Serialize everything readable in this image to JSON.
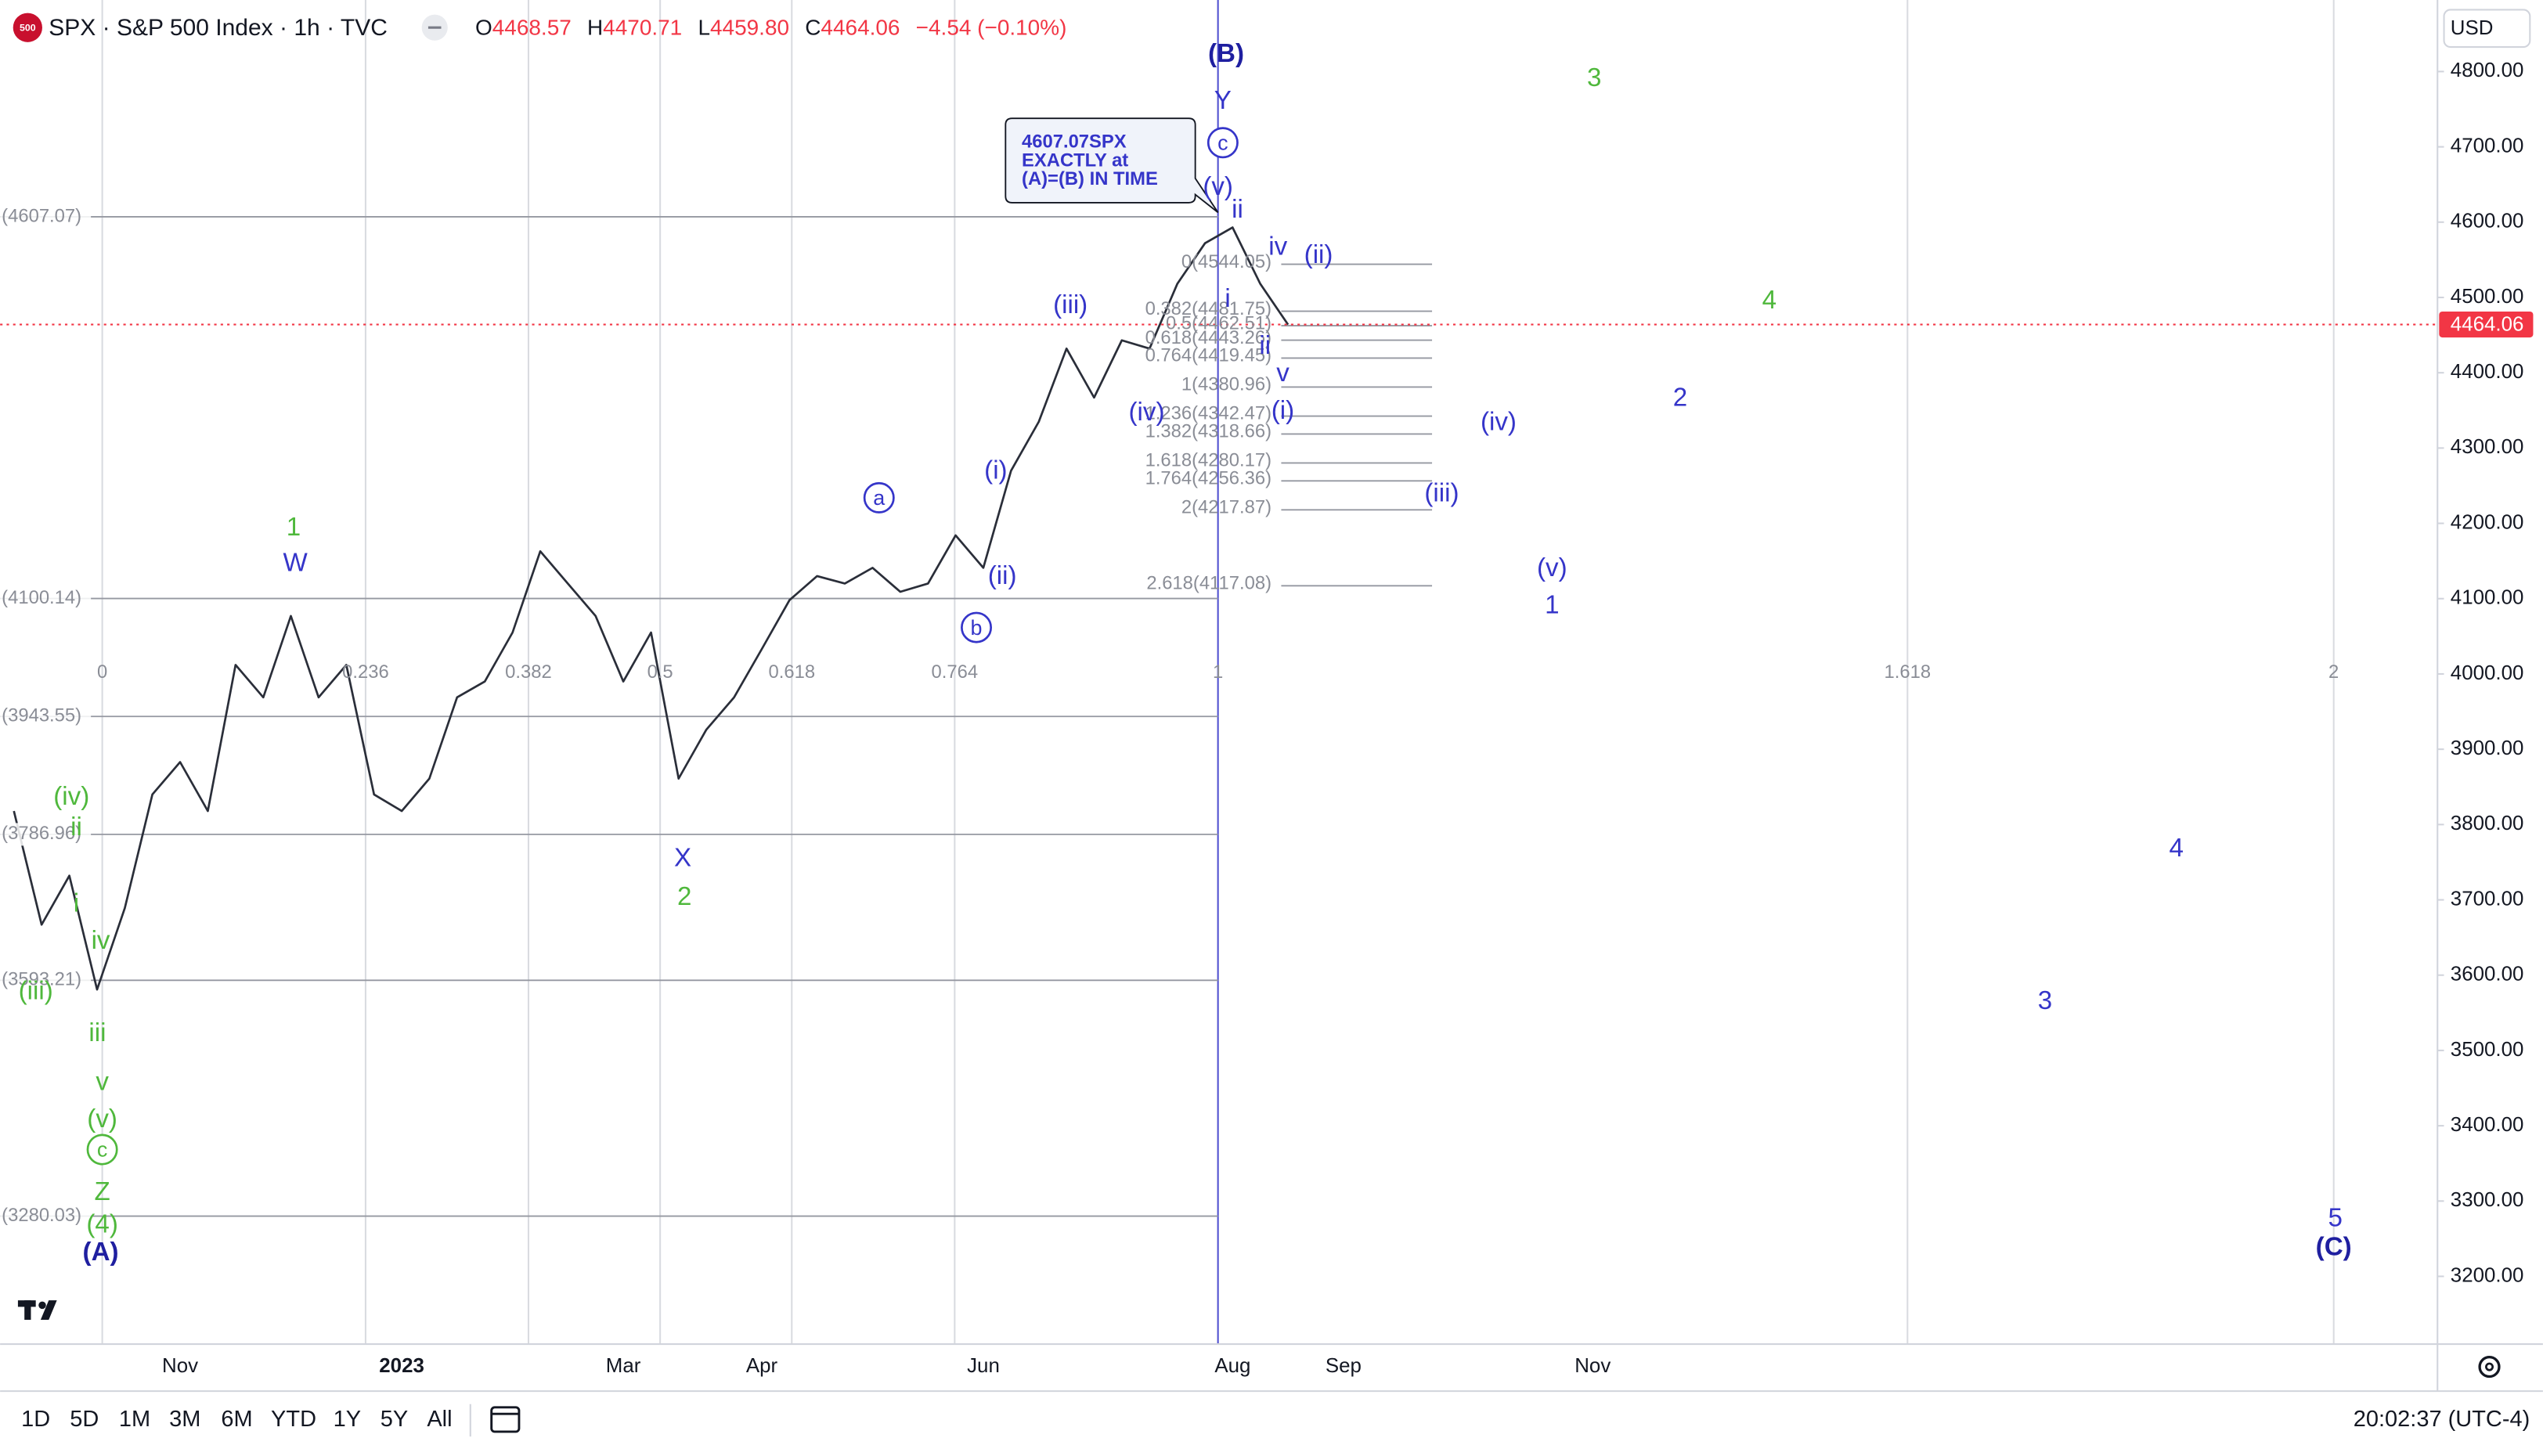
{
  "header": {
    "logo": "500",
    "symbol_title": "SPX · S&P 500 Index · 1h · TVC",
    "ohlc": [
      {
        "label": "O",
        "value": "4468.57"
      },
      {
        "label": "H",
        "value": "4470.71"
      },
      {
        "label": "L",
        "value": "4459.80"
      },
      {
        "label": "C",
        "value": "4464.06"
      }
    ],
    "change": "−4.54 (−0.10%)",
    "currency": "USD"
  },
  "chart_data": {
    "type": "line",
    "categories": [
      null,
      null,
      null,
      null,
      null,
      null,
      "Nov",
      null,
      null,
      null,
      null,
      null,
      null,
      null,
      "2023",
      null,
      null,
      null,
      null,
      null,
      null,
      null,
      "Mar",
      null,
      null,
      null,
      null,
      "Apr",
      null,
      null,
      null,
      null,
      null,
      null,
      null,
      "Jun",
      null,
      null,
      null,
      null,
      null,
      null,
      null,
      null,
      "Aug",
      null,
      null,
      null,
      "Sep",
      null,
      null,
      null,
      null,
      null,
      null,
      null,
      null,
      "Nov",
      null,
      null,
      null,
      null,
      null,
      null,
      null,
      null,
      null,
      null,
      null,
      null,
      null,
      null,
      null,
      null,
      null,
      null,
      null,
      null,
      null,
      null,
      null,
      null,
      null,
      null,
      null,
      null,
      null,
      null
    ],
    "values": [
      3818,
      3667,
      3732,
      3581,
      3689,
      3840,
      3883,
      3818,
      4012,
      3969,
      4077,
      3969,
      4012,
      3840,
      3818,
      3861,
      3969,
      3990,
      4055,
      4163,
      4120,
      4077,
      3990,
      4055,
      3861,
      3926,
      3969,
      4033,
      4098,
      4130,
      4120,
      4141,
      4109,
      4120,
      4184,
      4141,
      4270,
      4335,
      4432,
      4367,
      4443,
      4432,
      4518,
      4572,
      4593,
      4518,
      4464,
      null,
      null,
      null,
      null,
      null,
      null,
      null,
      null,
      null,
      null,
      null,
      null,
      null,
      null,
      null,
      null,
      null,
      null,
      null,
      null,
      null,
      null,
      null,
      null,
      null,
      null,
      null,
      null,
      null,
      null,
      null,
      null,
      null,
      null,
      null,
      null,
      null,
      null,
      null,
      null,
      null
    ],
    "color": "#2a2e39",
    "ylim": [
      3110,
      4895
    ],
    "yticks": [
      {
        "value": 3200,
        "label": "3200.00"
      },
      {
        "value": 3300,
        "label": "3300.00"
      },
      {
        "value": 3400,
        "label": "3400.00"
      },
      {
        "value": 3500,
        "label": "3500.00"
      },
      {
        "value": 3600,
        "label": "3600.00"
      },
      {
        "value": 3700,
        "label": "3700.00"
      },
      {
        "value": 3800,
        "label": "3800.00"
      },
      {
        "value": 3900,
        "label": "3900.00"
      },
      {
        "value": 4000,
        "label": "4000.00"
      },
      {
        "value": 4100,
        "label": "4100.00"
      },
      {
        "value": 4200,
        "label": "4200.00"
      },
      {
        "value": 4300,
        "label": "4300.00"
      },
      {
        "value": 4400,
        "label": "4400.00"
      },
      {
        "value": 4500,
        "label": "4500.00"
      },
      {
        "value": 4600,
        "label": "4600.00"
      },
      {
        "value": 4700,
        "label": "4700.00"
      },
      {
        "value": 4800,
        "label": "4800.00"
      }
    ],
    "grid": false,
    "last_price": 4464.06,
    "last_price_color": "#f23645",
    "price_levels": [
      {
        "value": 4607.07,
        "label": "(4607.07)"
      },
      {
        "value": 4100.14,
        "label": "(4100.14)"
      },
      {
        "value": 3943.55,
        "label": "(3943.55)"
      },
      {
        "value": 3786.96,
        "label": "(3786.96)"
      },
      {
        "value": 3593.21,
        "label": "(3593.21)"
      },
      {
        "value": 3280.03,
        "label": "(3280.03)"
      }
    ],
    "fib_levels": [
      {
        "value": 4544.05,
        "label": "0(4544.05)"
      },
      {
        "value": 4481.75,
        "label": "0.382(4481.75)"
      },
      {
        "value": 4462.51,
        "label": "0.5(4462.51)"
      },
      {
        "value": 4443.26,
        "label": "0.618(4443.26)"
      },
      {
        "value": 4419.45,
        "label": "0.764(4419.45)"
      },
      {
        "value": 4380.96,
        "label": "1(4380.96)"
      },
      {
        "value": 4342.47,
        "label": "1.236(4342.47)"
      },
      {
        "value": 4318.66,
        "label": "1.382(4318.66)"
      },
      {
        "value": 4280.17,
        "label": "1.618(4280.17)"
      },
      {
        "value": 4256.36,
        "label": "1.764(4256.36)"
      },
      {
        "value": 4217.87,
        "label": "2(4217.87)"
      },
      {
        "value": 4117.08,
        "label": "2.618(4117.08)"
      }
    ],
    "time_fib": [
      0,
      0.236,
      0.382,
      0.5,
      0.618,
      0.764,
      1,
      1.618,
      2
    ],
    "callout": [
      "4607.07SPX",
      "EXACTLY at",
      "(A)=(B) IN TIME"
    ],
    "annotations": [
      {
        "text": "(B)",
        "color": "#1f1fa0",
        "bold": true
      },
      {
        "text": "Y",
        "color": "#3535c9"
      },
      {
        "text": "c",
        "color": "#3535c9",
        "circled": true
      },
      {
        "text": "(v)",
        "color": "#3535c9"
      },
      {
        "text": "ii",
        "color": "#3535c9"
      },
      {
        "text": "iv",
        "color": "#3535c9"
      },
      {
        "text": "(ii)",
        "color": "#3535c9"
      },
      {
        "text": "i",
        "color": "#3535c9"
      },
      {
        "text": "ii",
        "color": "#3535c9"
      },
      {
        "text": "v",
        "color": "#3535c9"
      },
      {
        "text": "(i)",
        "color": "#3535c9"
      },
      {
        "text": "(iii)",
        "color": "#3535c9"
      },
      {
        "text": "(iv)",
        "color": "#3535c9"
      },
      {
        "text": "(i)",
        "color": "#3535c9"
      },
      {
        "text": "(ii)",
        "color": "#3535c9"
      },
      {
        "text": "a",
        "color": "#3535c9",
        "circled": true
      },
      {
        "text": "b",
        "color": "#3535c9",
        "circled": true
      },
      {
        "text": "(iv)",
        "color": "#3535c9"
      },
      {
        "text": "(iii)",
        "color": "#3535c9"
      },
      {
        "text": "(v)",
        "color": "#3535c9"
      },
      {
        "text": "1",
        "color": "#3535c9"
      },
      {
        "text": "2",
        "color": "#3535c9"
      },
      {
        "text": "W",
        "color": "#3535c9"
      },
      {
        "text": "X",
        "color": "#3535c9"
      },
      {
        "text": "4",
        "color": "#3535c9"
      },
      {
        "text": "3",
        "color": "#3535c9"
      },
      {
        "text": "5",
        "color": "#3535c9"
      },
      {
        "text": "(C)",
        "color": "#1f1fa0",
        "bold": true
      },
      {
        "text": "(A)",
        "color": "#1f1fa0",
        "bold": true
      },
      {
        "text": "3",
        "color": "#4fb83c"
      },
      {
        "text": "4",
        "color": "#4fb83c"
      },
      {
        "text": "1",
        "color": "#4fb83c"
      },
      {
        "text": "2",
        "color": "#4fb83c"
      },
      {
        "text": "(iv)",
        "color": "#4fb83c"
      },
      {
        "text": "ii",
        "color": "#4fb83c"
      },
      {
        "text": "i",
        "color": "#4fb83c"
      },
      {
        "text": "iv",
        "color": "#4fb83c"
      },
      {
        "text": "(iii)",
        "color": "#4fb83c"
      },
      {
        "text": "iii",
        "color": "#4fb83c"
      },
      {
        "text": "v",
        "color": "#4fb83c"
      },
      {
        "text": "(v)",
        "color": "#4fb83c"
      },
      {
        "text": "c",
        "color": "#4fb83c",
        "circled": true
      },
      {
        "text": "Z",
        "color": "#4fb83c"
      },
      {
        "text": "(4)",
        "color": "#4fb83c"
      }
    ]
  },
  "toolbar": {
    "ranges": [
      "1D",
      "5D",
      "1M",
      "3M",
      "6M",
      "YTD",
      "1Y",
      "5Y",
      "All"
    ],
    "clock": "20:02:37 (UTC-4)"
  }
}
